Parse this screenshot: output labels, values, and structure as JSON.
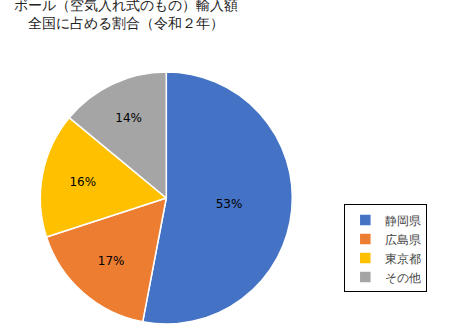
{
  "chart_data": {
    "type": "pie",
    "title": "ボール（空気入れ式のもの）輸入額",
    "subtitle": "　全国に占める割合（令和２年）",
    "categories": [
      "静岡県",
      "広島県",
      "東京都",
      "その他"
    ],
    "values": [
      53,
      17,
      16,
      14
    ],
    "value_labels": [
      "53%",
      "17%",
      "16%",
      "14%"
    ],
    "colors": [
      "#4472C4",
      "#ED7D31",
      "#FFC000",
      "#A5A5A5"
    ],
    "data_labels": true,
    "legend": "right"
  }
}
